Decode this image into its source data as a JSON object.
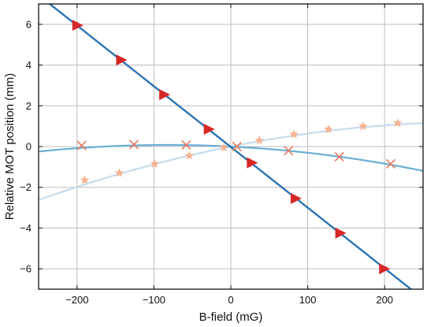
{
  "chart_data": {
    "type": "scatter",
    "title": "",
    "xlabel": "B-field (mG)",
    "ylabel": "Relative MOT position (mm)",
    "xlim": [
      -250,
      250
    ],
    "ylim": [
      -7,
      7
    ],
    "xticks": [
      -200,
      -100,
      0,
      100,
      200
    ],
    "yticks": [
      -6,
      -4,
      -2,
      0,
      2,
      4,
      6
    ],
    "grid": true,
    "legend": "none",
    "series": [
      {
        "marker": "triangle-right",
        "color": "#d62728",
        "line_color": "#2b74b3",
        "x": [
          -200,
          -143,
          -87,
          -29,
          27,
          84,
          142,
          199
        ],
        "y": [
          5.95,
          4.25,
          2.55,
          0.85,
          -0.8,
          -2.55,
          -4.25,
          -6.0
        ],
        "fit": {
          "kind": "linear",
          "slope": -0.0298,
          "intercept": -0.02
        }
      },
      {
        "marker": "x",
        "color": "#e87a5d",
        "line_color": "#6aaed6",
        "x": [
          -194,
          -126,
          -58,
          8,
          75,
          141,
          208
        ],
        "y": [
          0.05,
          0.1,
          0.08,
          0.0,
          -0.2,
          -0.5,
          -0.85
        ],
        "fit": {
          "kind": "quadratic",
          "a": -1.15e-05,
          "b": -0.0019,
          "c": 0.0
        }
      },
      {
        "marker": "star",
        "color": "#f7b393",
        "line_color": "#c6dbef",
        "x": [
          -190,
          -145,
          -99,
          -54,
          -9,
          37,
          82,
          127,
          172,
          217
        ],
        "y": [
          -1.65,
          -1.3,
          -0.85,
          -0.45,
          -0.05,
          0.3,
          0.6,
          0.85,
          1.0,
          1.15
        ],
        "fit": {
          "kind": "quadratic",
          "a": -1.18e-05,
          "b": 0.00755,
          "c": 0.0
        }
      }
    ]
  }
}
